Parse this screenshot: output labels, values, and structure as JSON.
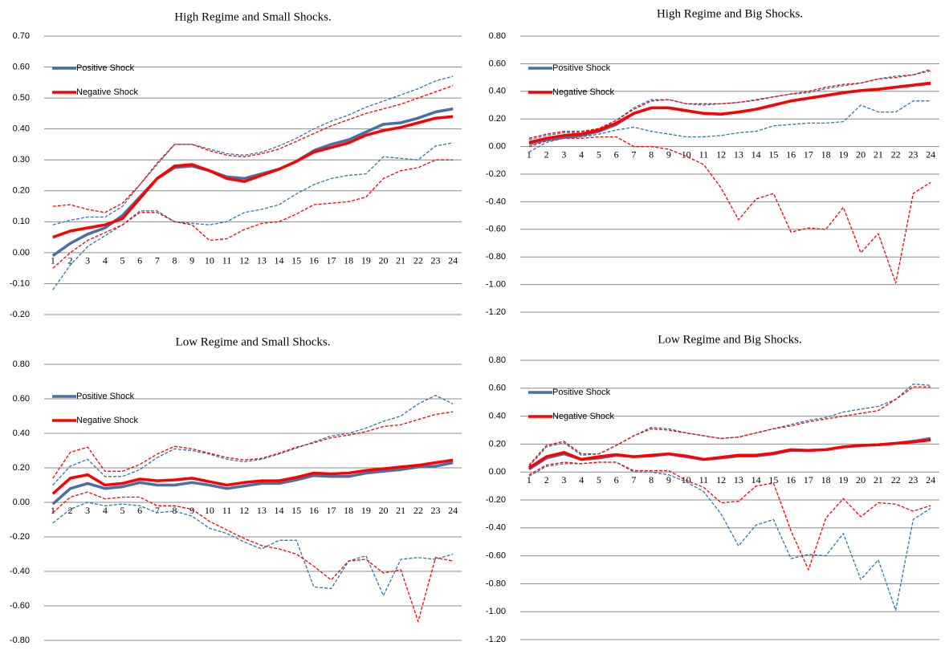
{
  "chart_data": [
    {
      "type": "line",
      "title": "High Regime and Small Shocks.",
      "legend": "upper left",
      "grid": true,
      "categories": [
        "1",
        "2",
        "3",
        "4",
        "5",
        "6",
        "7",
        "8",
        "9",
        "10",
        "11",
        "12",
        "13",
        "14",
        "15",
        "16",
        "17",
        "18",
        "19",
        "20",
        "21",
        "22",
        "23",
        "24"
      ],
      "ylim": [
        -0.2,
        0.7
      ],
      "yticks": [
        {
          "value": 0.7,
          "label": "0.70"
        },
        {
          "value": 0.6,
          "label": "0.60"
        },
        {
          "value": 0.5,
          "label": "0.50"
        },
        {
          "value": 0.4,
          "label": "0.40"
        },
        {
          "value": 0.3,
          "label": "0.30"
        },
        {
          "value": 0.2,
          "label": "0.20"
        },
        {
          "value": 0.1,
          "label": "0.10"
        },
        {
          "value": 0,
          "label": "0.00"
        },
        {
          "value": -0.1,
          "label": "-0.10"
        },
        {
          "value": -0.2,
          "label": "-0.20"
        }
      ],
      "series": [
        {
          "color": "#2e75b6",
          "style": "dashed",
          "values": [
            0.09,
            0.105,
            0.115,
            0.115,
            0.15,
            0.22,
            0.285,
            0.35,
            0.35,
            0.335,
            0.32,
            0.315,
            0.325,
            0.345,
            0.37,
            0.4,
            0.425,
            0.445,
            0.47,
            0.49,
            0.51,
            0.53,
            0.555,
            0.57
          ]
        },
        {
          "color": "#2e75b6",
          "style": "dashed",
          "values": [
            -0.12,
            -0.04,
            0.02,
            0.055,
            0.09,
            0.135,
            0.135,
            0.1,
            0.095,
            0.09,
            0.1,
            0.13,
            0.14,
            0.155,
            0.19,
            0.22,
            0.24,
            0.25,
            0.255,
            0.31,
            0.305,
            0.3,
            0.345,
            0.355
          ]
        },
        {
          "color": "#ff0000",
          "style": "dashed",
          "values": [
            0.15,
            0.155,
            0.14,
            0.13,
            0.16,
            0.22,
            0.29,
            0.35,
            0.35,
            0.33,
            0.315,
            0.31,
            0.32,
            0.335,
            0.36,
            0.385,
            0.41,
            0.43,
            0.45,
            0.465,
            0.48,
            0.5,
            0.52,
            0.54
          ]
        },
        {
          "color": "#ff0000",
          "style": "dashed",
          "values": [
            -0.05,
            0.0,
            0.04,
            0.065,
            0.09,
            0.13,
            0.13,
            0.1,
            0.09,
            0.04,
            0.045,
            0.075,
            0.095,
            0.1,
            0.125,
            0.155,
            0.16,
            0.165,
            0.18,
            0.24,
            0.265,
            0.275,
            0.3,
            0.3
          ]
        },
        {
          "name": "Positive Shock",
          "color": "#4a6fa5",
          "style": "solid",
          "values": [
            -0.01,
            0.03,
            0.06,
            0.08,
            0.12,
            0.18,
            0.24,
            0.275,
            0.28,
            0.265,
            0.245,
            0.24,
            0.255,
            0.27,
            0.295,
            0.33,
            0.35,
            0.365,
            0.39,
            0.415,
            0.42,
            0.435,
            0.455,
            0.465
          ]
        },
        {
          "name": "Negative Shock",
          "color": "#ff0000",
          "style": "solid",
          "values": [
            0.05,
            0.07,
            0.08,
            0.09,
            0.11,
            0.175,
            0.24,
            0.28,
            0.285,
            0.265,
            0.24,
            0.23,
            0.25,
            0.27,
            0.295,
            0.325,
            0.34,
            0.355,
            0.38,
            0.395,
            0.405,
            0.42,
            0.435,
            0.44
          ]
        }
      ]
    },
    {
      "type": "line",
      "title": "High Regime and Big Shocks.",
      "legend": "upper left",
      "grid": true,
      "categories": [
        "1",
        "2",
        "3",
        "4",
        "5",
        "6",
        "7",
        "8",
        "9",
        "10",
        "11",
        "12",
        "13",
        "14",
        "15",
        "16",
        "17",
        "18",
        "19",
        "20",
        "21",
        "22",
        "23",
        "24"
      ],
      "ylim": [
        -1.2,
        0.8
      ],
      "yticks": [
        {
          "value": 0.8,
          "label": "0.80"
        },
        {
          "value": 0.6,
          "label": "0.60"
        },
        {
          "value": 0.4,
          "label": "0.40"
        },
        {
          "value": 0.2,
          "label": "0.20"
        },
        {
          "value": 0,
          "label": "0.00"
        },
        {
          "value": -0.2,
          "label": "-0.20"
        },
        {
          "value": -0.4,
          "label": "-0.40"
        },
        {
          "value": -0.6,
          "label": "-0.60"
        },
        {
          "value": -0.8,
          "label": "-0.80"
        },
        {
          "value": -1,
          "label": "-1.00"
        },
        {
          "value": -1.2,
          "label": "-1.20"
        }
      ],
      "series": [
        {
          "color": "#2e75b6",
          "style": "dashed",
          "values": [
            0.05,
            0.08,
            0.1,
            0.1,
            0.13,
            0.19,
            0.28,
            0.34,
            0.34,
            0.31,
            0.3,
            0.31,
            0.32,
            0.34,
            0.36,
            0.38,
            0.39,
            0.42,
            0.44,
            0.46,
            0.49,
            0.51,
            0.52,
            0.56
          ]
        },
        {
          "color": "#2e75b6",
          "style": "dashed",
          "values": [
            -0.04,
            0.03,
            0.06,
            0.07,
            0.09,
            0.12,
            0.14,
            0.11,
            0.09,
            0.07,
            0.07,
            0.08,
            0.1,
            0.11,
            0.15,
            0.16,
            0.17,
            0.17,
            0.18,
            0.3,
            0.25,
            0.25,
            0.33,
            0.33
          ]
        },
        {
          "color": "#ff0000",
          "style": "dashed",
          "values": [
            0.06,
            0.09,
            0.11,
            0.11,
            0.13,
            0.19,
            0.27,
            0.33,
            0.34,
            0.31,
            0.31,
            0.31,
            0.32,
            0.335,
            0.36,
            0.38,
            0.4,
            0.43,
            0.45,
            0.46,
            0.49,
            0.5,
            0.52,
            0.55
          ]
        },
        {
          "color": "#ff0000",
          "style": "dashed",
          "values": [
            0.0,
            0.04,
            0.06,
            0.06,
            0.07,
            0.07,
            0.0,
            0.0,
            -0.02,
            -0.07,
            -0.13,
            -0.3,
            -0.53,
            -0.38,
            -0.34,
            -0.62,
            -0.59,
            -0.6,
            -0.44,
            -0.77,
            -0.63,
            -0.99,
            -0.34,
            -0.26
          ]
        },
        {
          "name": "Positive Shock",
          "color": "#4a6fa5",
          "style": "solid",
          "values": [
            0.02,
            0.05,
            0.07,
            0.08,
            0.11,
            0.16,
            0.24,
            0.28,
            0.28,
            0.26,
            0.24,
            0.235,
            0.25,
            0.27,
            0.3,
            0.33,
            0.35,
            0.37,
            0.39,
            0.405,
            0.415,
            0.43,
            0.445,
            0.455
          ]
        },
        {
          "name": "Negative Shock",
          "color": "#ff0000",
          "style": "solid",
          "values": [
            0.03,
            0.06,
            0.08,
            0.09,
            0.12,
            0.17,
            0.24,
            0.28,
            0.28,
            0.26,
            0.24,
            0.235,
            0.25,
            0.27,
            0.3,
            0.33,
            0.35,
            0.37,
            0.39,
            0.405,
            0.415,
            0.43,
            0.445,
            0.46
          ]
        }
      ]
    },
    {
      "type": "line",
      "title": "Low Regime and Small Shocks.",
      "legend": "upper left",
      "grid": true,
      "categories": [
        "1",
        "2",
        "3",
        "4",
        "5",
        "6",
        "7",
        "8",
        "9",
        "10",
        "11",
        "12",
        "13",
        "14",
        "15",
        "16",
        "17",
        "18",
        "19",
        "20",
        "21",
        "22",
        "23",
        "24"
      ],
      "ylim": [
        -0.8,
        0.8
      ],
      "yticks": [
        {
          "value": 0.8,
          "label": "0.80"
        },
        {
          "value": 0.6,
          "label": "0.60"
        },
        {
          "value": 0.4,
          "label": "0.40"
        },
        {
          "value": 0.2,
          "label": "0.20"
        },
        {
          "value": 0,
          "label": "0.00"
        },
        {
          "value": -0.2,
          "label": "-0.20"
        },
        {
          "value": -0.4,
          "label": "-0.40"
        },
        {
          "value": -0.6,
          "label": "-0.60"
        },
        {
          "value": -0.8,
          "label": "-0.80"
        }
      ],
      "series": [
        {
          "color": "#2e75b6",
          "style": "dashed",
          "values": [
            0.1,
            0.21,
            0.25,
            0.15,
            0.15,
            0.19,
            0.26,
            0.31,
            0.3,
            0.28,
            0.25,
            0.235,
            0.25,
            0.28,
            0.315,
            0.35,
            0.385,
            0.4,
            0.43,
            0.47,
            0.5,
            0.57,
            0.62,
            0.57
          ]
        },
        {
          "color": "#2e75b6",
          "style": "dashed",
          "values": [
            -0.12,
            -0.04,
            0.0,
            -0.02,
            -0.01,
            -0.02,
            -0.06,
            -0.05,
            -0.08,
            -0.15,
            -0.18,
            -0.23,
            -0.27,
            -0.22,
            -0.22,
            -0.49,
            -0.5,
            -0.34,
            -0.31,
            -0.54,
            -0.33,
            -0.32,
            -0.33,
            -0.3
          ]
        },
        {
          "color": "#ff0000",
          "style": "dashed",
          "values": [
            0.14,
            0.29,
            0.32,
            0.18,
            0.18,
            0.22,
            0.28,
            0.325,
            0.31,
            0.285,
            0.26,
            0.245,
            0.255,
            0.285,
            0.32,
            0.345,
            0.375,
            0.39,
            0.41,
            0.44,
            0.45,
            0.48,
            0.51,
            0.525
          ]
        },
        {
          "color": "#ff0000",
          "style": "dashed",
          "values": [
            -0.06,
            0.03,
            0.06,
            0.02,
            0.03,
            0.03,
            -0.02,
            -0.02,
            -0.04,
            -0.11,
            -0.16,
            -0.21,
            -0.25,
            -0.27,
            -0.3,
            -0.37,
            -0.45,
            -0.34,
            -0.33,
            -0.41,
            -0.39,
            -0.69,
            -0.32,
            -0.34
          ]
        },
        {
          "name": "Positive Shock",
          "color": "#4a6fa5",
          "style": "solid",
          "values": [
            -0.01,
            0.08,
            0.11,
            0.08,
            0.09,
            0.115,
            0.1,
            0.1,
            0.115,
            0.1,
            0.08,
            0.095,
            0.11,
            0.11,
            0.13,
            0.155,
            0.15,
            0.15,
            0.17,
            0.18,
            0.19,
            0.205,
            0.21,
            0.23
          ]
        },
        {
          "name": "Negative Shock",
          "color": "#ff0000",
          "style": "solid",
          "values": [
            0.05,
            0.14,
            0.16,
            0.1,
            0.11,
            0.135,
            0.125,
            0.13,
            0.14,
            0.12,
            0.1,
            0.115,
            0.125,
            0.125,
            0.145,
            0.17,
            0.165,
            0.17,
            0.185,
            0.195,
            0.205,
            0.215,
            0.23,
            0.245
          ]
        }
      ]
    },
    {
      "type": "line",
      "title": "Low Regime and Big Shocks.",
      "legend": "upper left",
      "grid": true,
      "categories": [
        "1",
        "2",
        "3",
        "4",
        "5",
        "6",
        "7",
        "8",
        "9",
        "10",
        "11",
        "12",
        "13",
        "14",
        "15",
        "16",
        "17",
        "18",
        "19",
        "20",
        "21",
        "22",
        "23",
        "24"
      ],
      "ylim": [
        -1.2,
        0.8
      ],
      "yticks": [
        {
          "value": 0.8,
          "label": "0.80"
        },
        {
          "value": 0.6,
          "label": "0.60"
        },
        {
          "value": 0.4,
          "label": "0.40"
        },
        {
          "value": 0.2,
          "label": "0.20"
        },
        {
          "value": 0,
          "label": "0.00"
        },
        {
          "value": -0.2,
          "label": "-0.20"
        },
        {
          "value": -0.4,
          "label": "-0.40"
        },
        {
          "value": -0.6,
          "label": "-0.60"
        },
        {
          "value": -0.8,
          "label": "-0.80"
        },
        {
          "value": -1,
          "label": "-1.00"
        },
        {
          "value": -1.2,
          "label": "-1.20"
        }
      ],
      "series": [
        {
          "color": "#2e75b6",
          "style": "dashed",
          "values": [
            0.04,
            0.18,
            0.21,
            0.12,
            0.13,
            0.19,
            0.26,
            0.32,
            0.31,
            0.28,
            0.26,
            0.24,
            0.25,
            0.28,
            0.31,
            0.34,
            0.37,
            0.39,
            0.43,
            0.45,
            0.47,
            0.52,
            0.63,
            0.62
          ]
        },
        {
          "color": "#2e75b6",
          "style": "dashed",
          "values": [
            -0.03,
            0.04,
            0.06,
            0.06,
            0.07,
            0.07,
            0.0,
            0.0,
            -0.02,
            -0.07,
            -0.14,
            -0.3,
            -0.53,
            -0.38,
            -0.34,
            -0.62,
            -0.59,
            -0.6,
            -0.44,
            -0.77,
            -0.63,
            -0.99,
            -0.34,
            -0.26
          ]
        },
        {
          "color": "#ff0000",
          "style": "dashed",
          "values": [
            0.05,
            0.19,
            0.22,
            0.13,
            0.13,
            0.19,
            0.26,
            0.31,
            0.3,
            0.28,
            0.26,
            0.24,
            0.25,
            0.28,
            0.31,
            0.33,
            0.36,
            0.38,
            0.4,
            0.42,
            0.44,
            0.52,
            0.61,
            0.61
          ]
        },
        {
          "color": "#ff0000",
          "style": "dashed",
          "values": [
            -0.02,
            0.05,
            0.07,
            0.06,
            0.07,
            0.07,
            0.01,
            0.01,
            0.01,
            -0.06,
            -0.11,
            -0.22,
            -0.21,
            -0.1,
            -0.08,
            -0.42,
            -0.7,
            -0.33,
            -0.19,
            -0.32,
            -0.22,
            -0.23,
            -0.28,
            -0.24
          ]
        },
        {
          "name": "Positive Shock",
          "color": "#4a6fa5",
          "style": "solid",
          "values": [
            0.02,
            0.1,
            0.13,
            0.09,
            0.1,
            0.12,
            0.11,
            0.115,
            0.13,
            0.11,
            0.09,
            0.1,
            0.115,
            0.115,
            0.13,
            0.155,
            0.155,
            0.16,
            0.18,
            0.19,
            0.195,
            0.205,
            0.22,
            0.24
          ]
        },
        {
          "name": "Negative Shock",
          "color": "#ff0000",
          "style": "solid",
          "values": [
            0.03,
            0.11,
            0.14,
            0.09,
            0.11,
            0.125,
            0.11,
            0.12,
            0.13,
            0.115,
            0.09,
            0.105,
            0.12,
            0.12,
            0.135,
            0.16,
            0.155,
            0.16,
            0.18,
            0.19,
            0.195,
            0.205,
            0.215,
            0.23
          ]
        }
      ]
    }
  ]
}
